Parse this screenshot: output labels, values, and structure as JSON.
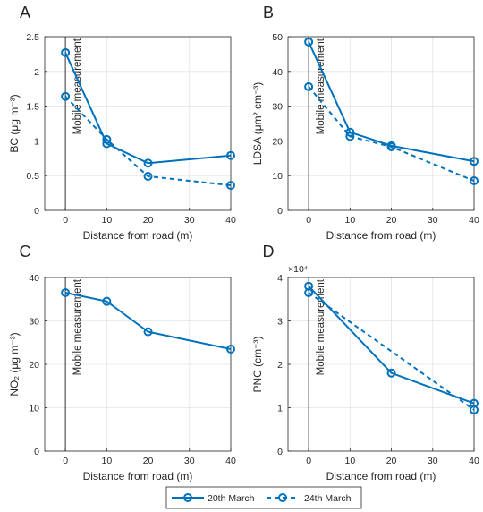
{
  "colors": {
    "series": "#0072BD",
    "grid": "#e4e4e4",
    "axis": "#262626",
    "mobile_line": "#000000"
  },
  "legend": {
    "placement": "bottom-center",
    "entries": [
      {
        "label": "20th March",
        "style": "solid"
      },
      {
        "label": "24th March",
        "style": "dashed"
      }
    ]
  },
  "chart_data": [
    {
      "panel": "A",
      "type": "line",
      "xlabel": "Distance from road (m)",
      "ylabel": "BC (μg m⁻³)",
      "x_ticks": [
        "0",
        "10",
        "20",
        "30",
        "40"
      ],
      "y_ticks": [
        "0",
        "0.5",
        "1",
        "1.5",
        "2",
        "2.5"
      ],
      "xlim": [
        -5,
        40
      ],
      "ylim": [
        0,
        2.5
      ],
      "grid": true,
      "annotation": {
        "text": "Mobile measurement",
        "x": 0
      },
      "series": [
        {
          "name": "20th March",
          "x": [
            0,
            10,
            20,
            40
          ],
          "y": [
            2.27,
            0.96,
            0.68,
            0.79
          ]
        },
        {
          "name": "24th March",
          "x": [
            0,
            10,
            20,
            40
          ],
          "y": [
            1.64,
            1.02,
            0.49,
            0.36
          ]
        }
      ]
    },
    {
      "panel": "B",
      "type": "line",
      "xlabel": "Distance from road (m)",
      "ylabel": "LDSA (μm² cm⁻³)",
      "x_ticks": [
        "0",
        "10",
        "20",
        "30",
        "40"
      ],
      "y_ticks": [
        "0",
        "10",
        "20",
        "30",
        "40",
        "50"
      ],
      "xlim": [
        -5,
        40
      ],
      "ylim": [
        0,
        50
      ],
      "grid": true,
      "annotation": {
        "text": "Mobile measurement",
        "x": 0
      },
      "series": [
        {
          "name": "20th March",
          "x": [
            0,
            10,
            20,
            40
          ],
          "y": [
            48.5,
            22.5,
            18.6,
            14.1
          ]
        },
        {
          "name": "24th March",
          "x": [
            0,
            10,
            20,
            40
          ],
          "y": [
            35.6,
            21.3,
            18.3,
            8.5
          ]
        }
      ]
    },
    {
      "panel": "C",
      "type": "line",
      "xlabel": "Distance from road (m)",
      "ylabel": "NO₂ (μg m⁻³)",
      "x_ticks": [
        "0",
        "10",
        "20",
        "30",
        "40"
      ],
      "y_ticks": [
        "0",
        "10",
        "20",
        "30",
        "40"
      ],
      "xlim": [
        -5,
        40
      ],
      "ylim": [
        0,
        40
      ],
      "grid": true,
      "annotation": {
        "text": "Mobile measurement",
        "x": 0
      },
      "series": [
        {
          "name": "20th March",
          "x": [
            0,
            10,
            20,
            40
          ],
          "y": [
            36.5,
            34.5,
            27.5,
            23.5
          ]
        }
      ]
    },
    {
      "panel": "D",
      "type": "line",
      "xlabel": "Distance from road (m)",
      "ylabel": "PNC (cm⁻³)",
      "y_exponent": "×10⁴",
      "x_ticks": [
        "0",
        "10",
        "20",
        "30",
        "40"
      ],
      "y_ticks": [
        "0",
        "1",
        "2",
        "3",
        "4"
      ],
      "xlim": [
        -5,
        40
      ],
      "ylim": [
        0,
        4
      ],
      "grid": true,
      "annotation": {
        "text": "Mobile measurement",
        "x": 0
      },
      "series": [
        {
          "name": "20th March",
          "x": [
            0,
            20,
            40
          ],
          "y": [
            3.8,
            1.8,
            1.1
          ]
        },
        {
          "name": "24th March",
          "x": [
            0,
            40
          ],
          "y": [
            3.65,
            0.95
          ]
        }
      ]
    }
  ]
}
